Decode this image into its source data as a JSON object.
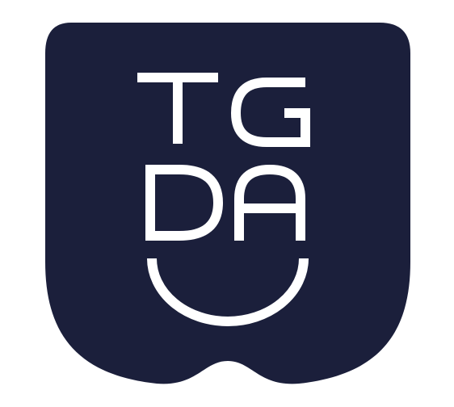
{
  "logo": {
    "lettering": [
      "T",
      "G",
      "D",
      "A"
    ],
    "shape": "shield-badge-with-smile",
    "colors": {
      "badge": "#1b1f3b",
      "mark": "#ffffff",
      "background": "#ffffff"
    }
  }
}
